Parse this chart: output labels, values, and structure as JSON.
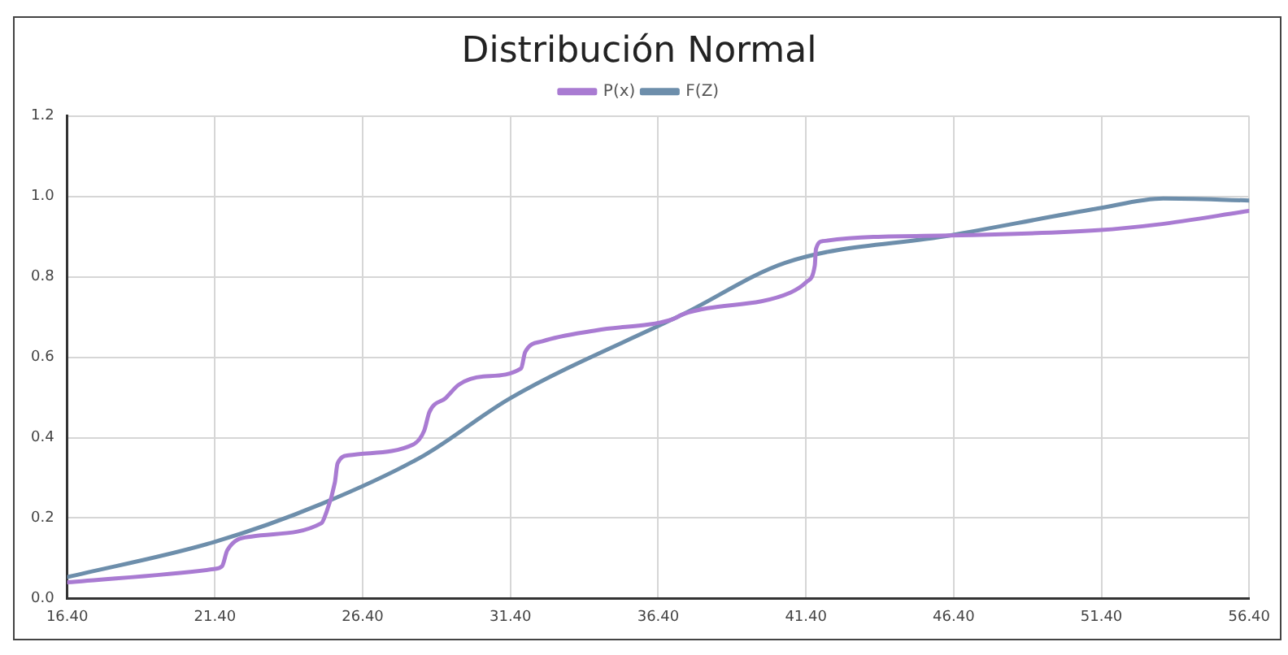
{
  "chart_data": {
    "type": "line",
    "title": "Distribución Normal",
    "xlim": [
      16.4,
      56.4
    ],
    "xticks": [
      {
        "value": 16.4,
        "label": "16.40"
      },
      {
        "value": 21.4,
        "label": "21.40"
      },
      {
        "value": 26.4,
        "label": "26.40"
      },
      {
        "value": 31.4,
        "label": "31.40"
      },
      {
        "value": 36.4,
        "label": "36.40"
      },
      {
        "value": 41.4,
        "label": "41.40"
      },
      {
        "value": 46.4,
        "label": "46.40"
      },
      {
        "value": 51.4,
        "label": "51.40"
      },
      {
        "value": 56.4,
        "label": "56.40"
      }
    ],
    "ylim": [
      0,
      1.2
    ],
    "yticks": [
      {
        "value": 0,
        "label": "0.0"
      },
      {
        "value": 0.2,
        "label": "0.2"
      },
      {
        "value": 0.4,
        "label": "0.4"
      },
      {
        "value": 0.6,
        "label": "0.6"
      },
      {
        "value": 0.8,
        "label": "0.8"
      },
      {
        "value": 1.0,
        "label": "1.0"
      },
      {
        "value": 1.2,
        "label": "1.2"
      }
    ],
    "grid": true,
    "legend": "top",
    "marker": "none",
    "line_style": "solid",
    "series": [
      {
        "name": "P(x)",
        "color": "#a97bd2",
        "x": [
          16.4,
          21.36,
          21.64,
          21.82,
          22.64,
          25.0,
          25.14,
          25.46,
          25.55,
          25.92,
          28.11,
          28.48,
          28.66,
          29.2,
          29.66,
          30.48,
          31.76,
          31.9,
          32.49,
          34.31,
          36.87,
          37.24,
          40.88,
          41.43,
          41.7,
          41.74,
          41.98,
          46.27,
          51.28,
          53.28,
          56.4
        ],
        "values": [
          0.04,
          0.073,
          0.08,
          0.12,
          0.154,
          0.187,
          0.208,
          0.289,
          0.336,
          0.356,
          0.383,
          0.417,
          0.464,
          0.498,
          0.532,
          0.552,
          0.572,
          0.613,
          0.64,
          0.667,
          0.694,
          0.707,
          0.761,
          0.788,
          0.828,
          0.869,
          0.889,
          0.903,
          0.916,
          0.93,
          0.964
        ]
      },
      {
        "name": "F(Z)",
        "color": "#6d8eab",
        "x": [
          16.4,
          21.36,
          25.0,
          28.48,
          31.39,
          36.87,
          37.24,
          40.7,
          46.27,
          51.28,
          53.5,
          56.4
        ],
        "values": [
          0.053,
          0.14,
          0.235,
          0.356,
          0.498,
          0.694,
          0.707,
          0.835,
          0.903,
          0.97,
          0.995,
          0.99
        ]
      }
    ]
  }
}
